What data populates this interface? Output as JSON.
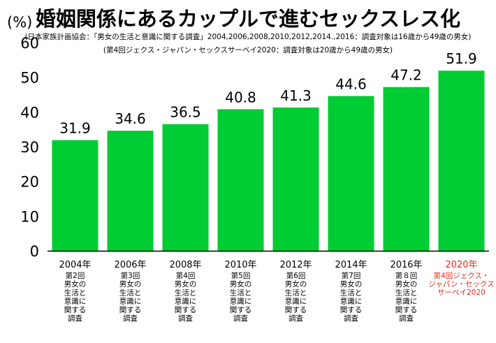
{
  "header": {
    "title": "婚姻関係にあるカップルで進むセックスレス化",
    "subtitle": "(日本家族計画協会：「男女の生活と意識に関する調査」2004,2006,2008,2010,2012,2014.,2016：調査対象は16歳から49歳の男女)",
    "note": "(第4回ジェクス・ジャパン・セックスサーベイ2020：調査対象は20歳から49歳の男女)",
    "unit": "(%)"
  },
  "colors": {
    "bar": "#00cc33",
    "highlight_label": "#e8291c",
    "text": "#000000",
    "axis": "#000000"
  },
  "chart_data": {
    "type": "bar",
    "categories": [
      "2004年",
      "2006年",
      "2008年",
      "2010年",
      "2012年",
      "2014年",
      "2016年",
      "2020年"
    ],
    "category_sublabels": [
      [
        "第2回",
        "男女の",
        "生活と",
        "意識に",
        "関する",
        "調査"
      ],
      [
        "第3回",
        "男女の",
        "生活と",
        "意識に",
        "関する",
        "調査"
      ],
      [
        "第4回",
        "男女の",
        "生活と",
        "意識に",
        "関する",
        "調査"
      ],
      [
        "第5回",
        "男女の",
        "生活と",
        "意識に",
        "関する",
        "調査"
      ],
      [
        "第6回",
        "男女の",
        "生活と",
        "意識に",
        "関する",
        "調査"
      ],
      [
        "第7回",
        "男女の",
        "生活と",
        "意識に",
        "関する",
        "調査"
      ],
      [
        "第８回",
        "男女の",
        "生活と",
        "意識に",
        "関する",
        "調査"
      ],
      [
        "第4回ジェクス・",
        "ジャパン・セックス",
        "サーベイ2020"
      ]
    ],
    "values": [
      31.9,
      34.6,
      36.5,
      40.8,
      41.3,
      44.6,
      47.2,
      51.9
    ],
    "value_labels": [
      "31.9",
      "34.6",
      "36.5",
      "40.8",
      "41.3",
      "44.6",
      "47.2",
      "51.9"
    ],
    "highlighted_category": "2020年",
    "ylim": [
      0,
      60
    ],
    "yticks": [
      0,
      10,
      20,
      30,
      40,
      50,
      60
    ],
    "grid": false,
    "legend": "none"
  }
}
